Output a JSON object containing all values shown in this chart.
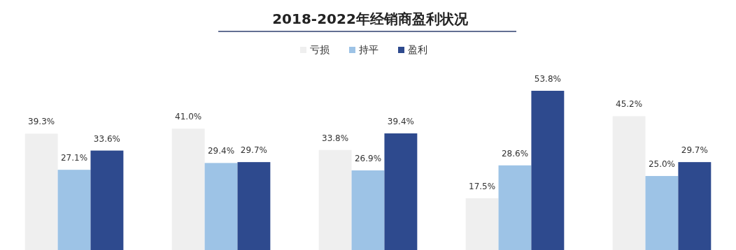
{
  "chart_data": {
    "type": "bar",
    "title": "2018-2022年经销商盈利状况",
    "categories": [
      null,
      null,
      null,
      null,
      null
    ],
    "legend": "top",
    "series": [
      {
        "name": "亏损",
        "color": "#efefef",
        "values": [
          39.3,
          41.0,
          33.8,
          17.5,
          45.2
        ],
        "value_labels": [
          "39.3%",
          "41.0%",
          "33.8%",
          "17.5%",
          "45.2%"
        ]
      },
      {
        "name": "持平",
        "color": "#9dc3e6",
        "values": [
          27.1,
          29.4,
          26.9,
          28.6,
          25.0
        ],
        "value_labels": [
          "27.1%",
          "29.4%",
          "26.9%",
          "28.6%",
          "25.0%"
        ]
      },
      {
        "name": "盈利",
        "color": "#2e4a8e",
        "values": [
          33.6,
          29.7,
          39.4,
          53.8,
          29.7
        ],
        "value_labels": [
          "33.6%",
          "29.7%",
          "39.4%",
          "53.8%",
          "29.7%"
        ]
      }
    ]
  }
}
